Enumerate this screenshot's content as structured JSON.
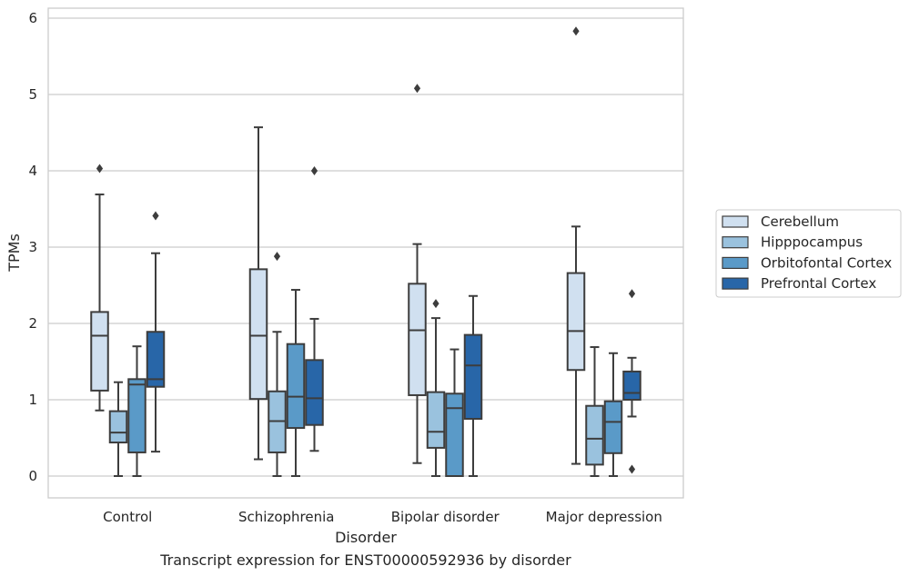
{
  "chart_data": {
    "type": "box",
    "title": "",
    "caption": "Transcript expression for ENST00000592936 by disorder",
    "xlabel": "Disorder",
    "ylabel": "TPMs",
    "ylim": [
      -0.28,
      6.15
    ],
    "yticks": [
      0,
      1,
      2,
      3,
      4,
      5,
      6
    ],
    "grid": "horizontal",
    "legend_position": "right",
    "categories": [
      "Control",
      "Schizophrenia",
      "Bipolar disorder",
      "Major depression"
    ],
    "series": [
      {
        "name": "Cerebellum",
        "color": "#d0e0f0",
        "boxes": [
          {
            "whisker_low": 0.86,
            "q1": 1.12,
            "median": 1.84,
            "q3": 2.15,
            "whisker_high": 3.69,
            "outliers": [
              4.03
            ]
          },
          {
            "whisker_low": 0.22,
            "q1": 1.01,
            "median": 1.84,
            "q3": 2.71,
            "whisker_high": 4.57,
            "outliers": []
          },
          {
            "whisker_low": 0.17,
            "q1": 1.06,
            "median": 1.91,
            "q3": 2.52,
            "whisker_high": 3.04,
            "outliers": [
              5.08
            ]
          },
          {
            "whisker_low": 0.16,
            "q1": 1.39,
            "median": 1.9,
            "q3": 2.66,
            "whisker_high": 3.27,
            "outliers": [
              5.83
            ]
          }
        ]
      },
      {
        "name": "Hipppocampus",
        "color": "#9ac2de",
        "boxes": [
          {
            "whisker_low": 0.0,
            "q1": 0.44,
            "median": 0.57,
            "q3": 0.85,
            "whisker_high": 1.23,
            "outliers": []
          },
          {
            "whisker_low": 0.0,
            "q1": 0.31,
            "median": 0.72,
            "q3": 1.11,
            "whisker_high": 1.89,
            "outliers": [
              2.88
            ]
          },
          {
            "whisker_low": 0.0,
            "q1": 0.37,
            "median": 0.58,
            "q3": 1.1,
            "whisker_high": 2.07,
            "outliers": [
              2.26
            ]
          },
          {
            "whisker_low": 0.0,
            "q1": 0.15,
            "median": 0.49,
            "q3": 0.92,
            "whisker_high": 1.69,
            "outliers": []
          }
        ]
      },
      {
        "name": "Orbitofontal Cortex",
        "color": "#5a9ac8",
        "boxes": [
          {
            "whisker_low": 0.0,
            "q1": 0.31,
            "median": 1.2,
            "q3": 1.27,
            "whisker_high": 1.7,
            "outliers": []
          },
          {
            "whisker_low": 0.0,
            "q1": 0.63,
            "median": 1.04,
            "q3": 1.73,
            "whisker_high": 2.44,
            "outliers": []
          },
          {
            "whisker_low": 0.0,
            "q1": 0.0,
            "median": 0.89,
            "q3": 1.08,
            "whisker_high": 1.66,
            "outliers": []
          },
          {
            "whisker_low": 0.0,
            "q1": 0.3,
            "median": 0.71,
            "q3": 0.98,
            "whisker_high": 1.61,
            "outliers": []
          }
        ]
      },
      {
        "name": "Prefrontal Cortex",
        "color": "#2866a8",
        "boxes": [
          {
            "whisker_low": 0.32,
            "q1": 1.17,
            "median": 1.27,
            "q3": 1.89,
            "whisker_high": 2.92,
            "outliers": [
              3.41
            ]
          },
          {
            "whisker_low": 0.33,
            "q1": 0.67,
            "median": 1.02,
            "q3": 1.52,
            "whisker_high": 2.06,
            "outliers": [
              4.0
            ]
          },
          {
            "whisker_low": 0.0,
            "q1": 0.75,
            "median": 1.45,
            "q3": 1.85,
            "whisker_high": 2.36,
            "outliers": []
          },
          {
            "whisker_low": 0.78,
            "q1": 1.0,
            "median": 1.09,
            "q3": 1.37,
            "whisker_high": 1.55,
            "outliers": [
              2.39,
              0.09
            ]
          }
        ]
      }
    ]
  }
}
